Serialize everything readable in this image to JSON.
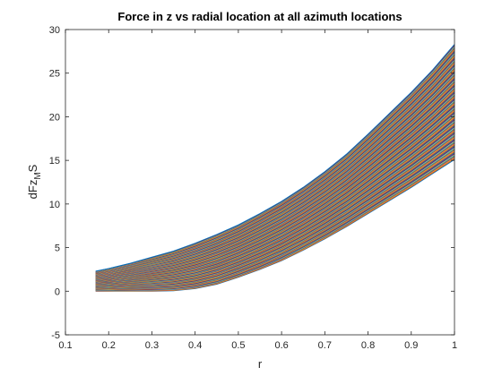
{
  "chart_data": {
    "type": "line",
    "title": "Force in z vs radial location at all azimuth locations",
    "xlabel": "r",
    "ylabel_parts": {
      "base": "dFz",
      "sub": "M",
      "end": "S"
    },
    "xlim": [
      0.1,
      1
    ],
    "ylim": [
      -5,
      30
    ],
    "x_ticks": [
      "0.1",
      "0.2",
      "0.3",
      "0.4",
      "0.5",
      "0.6",
      "0.7",
      "0.8",
      "0.9",
      "1"
    ],
    "y_ticks": [
      "-5",
      "0",
      "5",
      "10",
      "15",
      "20",
      "25",
      "30"
    ],
    "grid": false,
    "x": [
      0.17,
      0.2,
      0.25,
      0.3,
      0.35,
      0.4,
      0.45,
      0.5,
      0.55,
      0.6,
      0.65,
      0.7,
      0.75,
      0.8,
      0.85,
      0.9,
      0.95,
      1.0
    ],
    "envelope_upper": [
      2.3,
      2.6,
      3.2,
      3.9,
      4.6,
      5.5,
      6.5,
      7.6,
      8.9,
      10.3,
      11.9,
      13.7,
      15.7,
      18.0,
      20.4,
      22.8,
      25.4,
      28.3
    ],
    "envelope_lower": [
      0.0,
      0.0,
      0.0,
      0.0,
      0.05,
      0.3,
      0.8,
      1.6,
      2.5,
      3.5,
      4.7,
      6.0,
      7.4,
      8.9,
      10.4,
      11.9,
      13.5,
      15.1
    ],
    "series_count": 120,
    "series_colors": [
      "#0072bd",
      "#d95319",
      "#edb120",
      "#7e2f8e",
      "#77ac30",
      "#4dbeee",
      "#a2142f"
    ]
  }
}
